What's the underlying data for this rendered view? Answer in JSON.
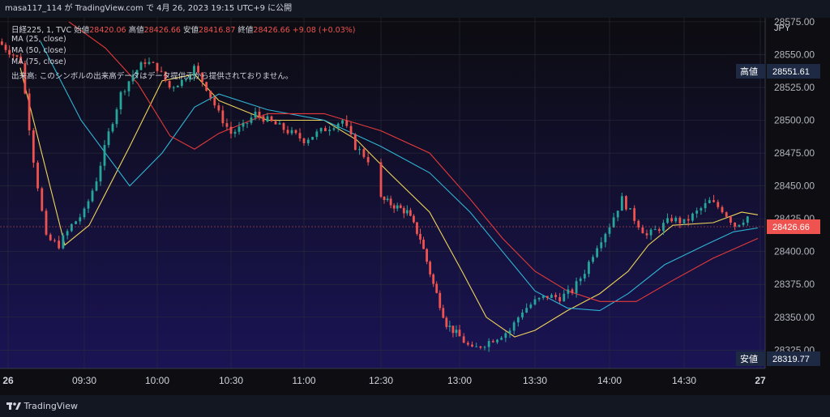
{
  "header": {
    "publish_line": "masa117_114 が TradingView.com で 4月 26, 2023 19:15 UTC+9 に公開"
  },
  "legend": {
    "symbol": "日経225, 1, TVC",
    "open_label": "始値",
    "open_value": "28420.06",
    "high_label": "高値",
    "high_value": "28426.66",
    "low_label": "安値",
    "low_value": "28416.87",
    "close_label": "終値",
    "close_value": "28426.66",
    "change": "+9.08 (+0.03%)",
    "ma_lines": [
      "MA (25, close)",
      "MA (50, close)",
      "MA (75, close)"
    ],
    "volume_note": "出来高: このシンボルの出来高データはデータ提供元から提供されておりません。"
  },
  "axis": {
    "currency": "JPY",
    "high_tag_label": "高値",
    "high_tag_value": "28551.61",
    "low_tag_label": "安値",
    "low_tag_value": "28319.77",
    "last_price": "28426.66"
  },
  "footer": {
    "brand": "TradingView"
  },
  "colors": {
    "up": "#26a69a",
    "down": "#ef5350",
    "ma25": "#f0d55b",
    "ma50": "#2fb4d4",
    "ma75": "#e63a3a",
    "bg_top": "#0c0c10",
    "bg_bottom": "#1a1455"
  },
  "chart_data": {
    "type": "candlestick",
    "interval": "1 minute",
    "y_ticks": [
      28575,
      28550,
      28525,
      28500,
      28475,
      28450,
      28425,
      28400,
      28375,
      28350,
      28325
    ],
    "ylim": [
      28311,
      28578
    ],
    "x_ticks": [
      "26",
      "09:30",
      "10:00",
      "10:30",
      "11:00",
      "12:30",
      "13:00",
      "13:30",
      "14:00",
      "14:30",
      "27"
    ],
    "grid": true,
    "session_anchors": [
      {
        "time": "09:05",
        "close": 28545
      },
      {
        "time": "09:10",
        "close": 28470
      },
      {
        "time": "09:15",
        "close": 28410
      },
      {
        "time": "09:20",
        "close": 28405
      },
      {
        "time": "09:25",
        "close": 28420
      },
      {
        "time": "09:30",
        "close": 28430
      },
      {
        "time": "09:35",
        "close": 28455
      },
      {
        "time": "09:40",
        "close": 28490
      },
      {
        "time": "09:45",
        "close": 28520
      },
      {
        "time": "09:50",
        "close": 28535
      },
      {
        "time": "09:55",
        "close": 28545
      },
      {
        "time": "10:00",
        "close": 28540
      },
      {
        "time": "10:05",
        "close": 28525
      },
      {
        "time": "10:10",
        "close": 28530
      },
      {
        "time": "10:15",
        "close": 28540
      },
      {
        "time": "10:20",
        "close": 28525
      },
      {
        "time": "10:25",
        "close": 28505
      },
      {
        "time": "10:30",
        "close": 28490
      },
      {
        "time": "10:35",
        "close": 28495
      },
      {
        "time": "10:40",
        "close": 28505
      },
      {
        "time": "10:45",
        "close": 28500
      },
      {
        "time": "10:50",
        "close": 28495
      },
      {
        "time": "10:55",
        "close": 28490
      },
      {
        "time": "11:00",
        "close": 28485
      },
      {
        "time": "11:05",
        "close": 28490
      },
      {
        "time": "11:10",
        "close": 28495
      },
      {
        "time": "11:15",
        "close": 28500
      },
      {
        "time": "11:20",
        "close": 28480
      },
      {
        "time": "11:25",
        "close": 28470
      },
      {
        "time": "12:30",
        "close": 28440
      },
      {
        "time": "12:35",
        "close": 28435
      },
      {
        "time": "12:40",
        "close": 28430
      },
      {
        "time": "12:45",
        "close": 28410
      },
      {
        "time": "12:50",
        "close": 28375
      },
      {
        "time": "12:55",
        "close": 28345
      },
      {
        "time": "13:00",
        "close": 28335
      },
      {
        "time": "13:05",
        "close": 28325
      },
      {
        "time": "13:10",
        "close": 28330
      },
      {
        "time": "13:15",
        "close": 28335
      },
      {
        "time": "13:20",
        "close": 28340
      },
      {
        "time": "13:25",
        "close": 28355
      },
      {
        "time": "13:30",
        "close": 28362
      },
      {
        "time": "13:35",
        "close": 28366
      },
      {
        "time": "13:40",
        "close": 28365
      },
      {
        "time": "13:45",
        "close": 28370
      },
      {
        "time": "13:50",
        "close": 28385
      },
      {
        "time": "13:55",
        "close": 28405
      },
      {
        "time": "14:00",
        "close": 28420
      },
      {
        "time": "14:05",
        "close": 28440
      },
      {
        "time": "14:10",
        "close": 28425
      },
      {
        "time": "14:15",
        "close": 28412
      },
      {
        "time": "14:20",
        "close": 28418
      },
      {
        "time": "14:25",
        "close": 28425
      },
      {
        "time": "14:30",
        "close": 28422
      },
      {
        "time": "14:35",
        "close": 28430
      },
      {
        "time": "14:40",
        "close": 28438
      },
      {
        "time": "14:45",
        "close": 28432
      },
      {
        "time": "14:50",
        "close": 28420
      },
      {
        "time": "14:55",
        "close": 28426.66
      }
    ],
    "moving_averages": [
      {
        "name": "MA (25, close)",
        "points": [
          [
            25,
            28540
          ],
          [
            80,
            28405
          ],
          [
            110,
            28420
          ],
          [
            160,
            28480
          ],
          [
            200,
            28530
          ],
          [
            240,
            28535
          ],
          [
            270,
            28515
          ],
          [
            330,
            28500
          ],
          [
            400,
            28500
          ],
          [
            440,
            28485
          ],
          [
            480,
            28460
          ],
          [
            530,
            28430
          ],
          [
            570,
            28385
          ],
          [
            600,
            28350
          ],
          [
            635,
            28335
          ],
          [
            660,
            28340
          ],
          [
            700,
            28355
          ],
          [
            740,
            28368
          ],
          [
            775,
            28385
          ],
          [
            800,
            28405
          ],
          [
            830,
            28420
          ],
          [
            880,
            28422
          ],
          [
            915,
            28430
          ],
          [
            935,
            28428
          ]
        ]
      },
      {
        "name": "MA (50, close)",
        "points": [
          [
            50,
            28560
          ],
          [
            100,
            28500
          ],
          [
            160,
            28450
          ],
          [
            200,
            28475
          ],
          [
            240,
            28510
          ],
          [
            270,
            28520
          ],
          [
            330,
            28508
          ],
          [
            400,
            28500
          ],
          [
            470,
            28480
          ],
          [
            530,
            28460
          ],
          [
            580,
            28430
          ],
          [
            620,
            28400
          ],
          [
            660,
            28370
          ],
          [
            700,
            28357
          ],
          [
            740,
            28355
          ],
          [
            775,
            28368
          ],
          [
            820,
            28390
          ],
          [
            870,
            28405
          ],
          [
            905,
            28415
          ],
          [
            935,
            28418
          ]
        ]
      },
      {
        "name": "MA (75, close)",
        "points": [
          [
            85,
            28575
          ],
          [
            130,
            28555
          ],
          [
            170,
            28528
          ],
          [
            210,
            28488
          ],
          [
            240,
            28478
          ],
          [
            270,
            28490
          ],
          [
            330,
            28505
          ],
          [
            400,
            28505
          ],
          [
            470,
            28492
          ],
          [
            530,
            28475
          ],
          [
            580,
            28440
          ],
          [
            620,
            28410
          ],
          [
            660,
            28385
          ],
          [
            700,
            28370
          ],
          [
            740,
            28362
          ],
          [
            785,
            28362
          ],
          [
            830,
            28378
          ],
          [
            880,
            28395
          ],
          [
            935,
            28410
          ]
        ]
      }
    ]
  }
}
